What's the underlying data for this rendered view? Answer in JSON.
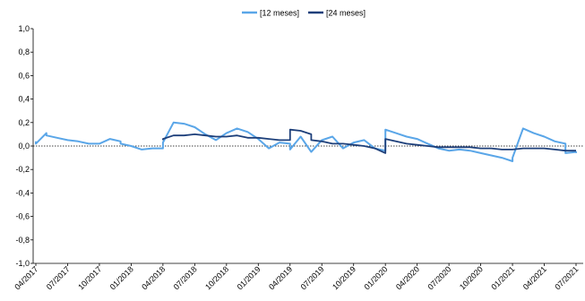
{
  "chart_data": {
    "type": "line",
    "title": "",
    "xlabel": "",
    "ylabel": "",
    "ylim": [
      -1.0,
      1.0
    ],
    "y_ticks": [
      1.0,
      0.8,
      0.6,
      0.4,
      0.2,
      0.0,
      -0.2,
      -0.4,
      -0.6,
      -0.8,
      -1.0
    ],
    "y_tick_labels": [
      "1,0",
      "0,8",
      "0,6",
      "0,4",
      "0,2",
      "0,0",
      "-0,2",
      "-0,4",
      "-0,6",
      "-0,8",
      "-1,0"
    ],
    "x_tick_labels": [
      "04/2017",
      "07/2017",
      "10/2017",
      "01/2018",
      "04/2018",
      "07/2018",
      "10/2018",
      "01/2019",
      "04/2019",
      "07/2019",
      "10/2019",
      "01/2020",
      "04/2020",
      "07/2020",
      "10/2020",
      "01/2021",
      "04/2021",
      "07/2021"
    ],
    "x_range": [
      "2017-04",
      "2021-07"
    ],
    "x_unit": "month",
    "legend_position": "top-center",
    "grid": false,
    "zero_line": "dotted",
    "series": [
      {
        "name": "[12 meses]",
        "color": "#5aa6e8",
        "points": [
          [
            "2017-04",
            0.04
          ],
          [
            "2017-04",
            0.02
          ],
          [
            "2017-05",
            0.11
          ],
          [
            "2017-05",
            0.09
          ],
          [
            "2017-06",
            0.07
          ],
          [
            "2017-07",
            0.05
          ],
          [
            "2017-08",
            0.04
          ],
          [
            "2017-09",
            0.02
          ],
          [
            "2017-10",
            0.02
          ],
          [
            "2017-11",
            0.06
          ],
          [
            "2017-12",
            0.04
          ],
          [
            "2017-12",
            0.02
          ],
          [
            "2018-01",
            0.0
          ],
          [
            "2018-02",
            -0.03
          ],
          [
            "2018-03",
            -0.02
          ],
          [
            "2018-04",
            -0.02
          ],
          [
            "2018-04",
            0.03
          ],
          [
            "2018-05",
            0.2
          ],
          [
            "2018-06",
            0.19
          ],
          [
            "2018-07",
            0.16
          ],
          [
            "2018-08",
            0.1
          ],
          [
            "2018-09",
            0.05
          ],
          [
            "2018-10",
            0.11
          ],
          [
            "2018-11",
            0.15
          ],
          [
            "2018-12",
            0.12
          ],
          [
            "2019-01",
            0.06
          ],
          [
            "2019-02",
            -0.02
          ],
          [
            "2019-03",
            0.03
          ],
          [
            "2019-04",
            0.02
          ],
          [
            "2019-04",
            -0.03
          ],
          [
            "2019-05",
            0.08
          ],
          [
            "2019-06",
            -0.05
          ],
          [
            "2019-07",
            0.05
          ],
          [
            "2019-08",
            0.08
          ],
          [
            "2019-09",
            -0.02
          ],
          [
            "2019-10",
            0.03
          ],
          [
            "2019-11",
            0.05
          ],
          [
            "2019-12",
            -0.02
          ],
          [
            "2020-01",
            -0.04
          ],
          [
            "2020-01",
            0.14
          ],
          [
            "2020-02",
            0.11
          ],
          [
            "2020-03",
            0.08
          ],
          [
            "2020-04",
            0.06
          ],
          [
            "2020-05",
            0.02
          ],
          [
            "2020-06",
            -0.02
          ],
          [
            "2020-07",
            -0.04
          ],
          [
            "2020-08",
            -0.03
          ],
          [
            "2020-09",
            -0.04
          ],
          [
            "2020-10",
            -0.06
          ],
          [
            "2020-11",
            -0.08
          ],
          [
            "2020-12",
            -0.1
          ],
          [
            "2021-01",
            -0.13
          ],
          [
            "2021-01",
            -0.1
          ],
          [
            "2021-02",
            0.15
          ],
          [
            "2021-03",
            0.11
          ],
          [
            "2021-04",
            0.08
          ],
          [
            "2021-05",
            0.04
          ],
          [
            "2021-06",
            0.02
          ],
          [
            "2021-06",
            -0.06
          ],
          [
            "2021-07",
            -0.05
          ],
          [
            "2021-07",
            -0.06
          ]
        ]
      },
      {
        "name": "[24 meses]",
        "color": "#1d3f7a",
        "points": [
          [
            "2018-04",
            0.05
          ],
          [
            "2018-04",
            0.06
          ],
          [
            "2018-05",
            0.09
          ],
          [
            "2018-06",
            0.09
          ],
          [
            "2018-07",
            0.1
          ],
          [
            "2018-08",
            0.09
          ],
          [
            "2018-09",
            0.08
          ],
          [
            "2018-10",
            0.08
          ],
          [
            "2018-11",
            0.09
          ],
          [
            "2018-12",
            0.07
          ],
          [
            "2019-01",
            0.07
          ],
          [
            "2019-02",
            0.06
          ],
          [
            "2019-03",
            0.05
          ],
          [
            "2019-04",
            0.05
          ],
          [
            "2019-04",
            0.14
          ],
          [
            "2019-05",
            0.13
          ],
          [
            "2019-06",
            0.1
          ],
          [
            "2019-06",
            0.05
          ],
          [
            "2019-07",
            0.04
          ],
          [
            "2019-08",
            0.02
          ],
          [
            "2019-09",
            0.02
          ],
          [
            "2019-10",
            0.01
          ],
          [
            "2019-11",
            0.0
          ],
          [
            "2019-12",
            -0.02
          ],
          [
            "2020-01",
            -0.06
          ],
          [
            "2020-01",
            0.06
          ],
          [
            "2020-02",
            0.04
          ],
          [
            "2020-03",
            0.02
          ],
          [
            "2020-04",
            0.01
          ],
          [
            "2020-05",
            0.0
          ],
          [
            "2020-06",
            -0.01
          ],
          [
            "2020-07",
            -0.01
          ],
          [
            "2020-08",
            -0.01
          ],
          [
            "2020-09",
            -0.01
          ],
          [
            "2020-10",
            -0.02
          ],
          [
            "2020-11",
            -0.02
          ],
          [
            "2020-12",
            -0.03
          ],
          [
            "2021-01",
            -0.03
          ],
          [
            "2021-02",
            -0.02
          ],
          [
            "2021-03",
            -0.02
          ],
          [
            "2021-04",
            -0.02
          ],
          [
            "2021-05",
            -0.03
          ],
          [
            "2021-06",
            -0.04
          ],
          [
            "2021-07",
            -0.04
          ]
        ]
      }
    ]
  }
}
